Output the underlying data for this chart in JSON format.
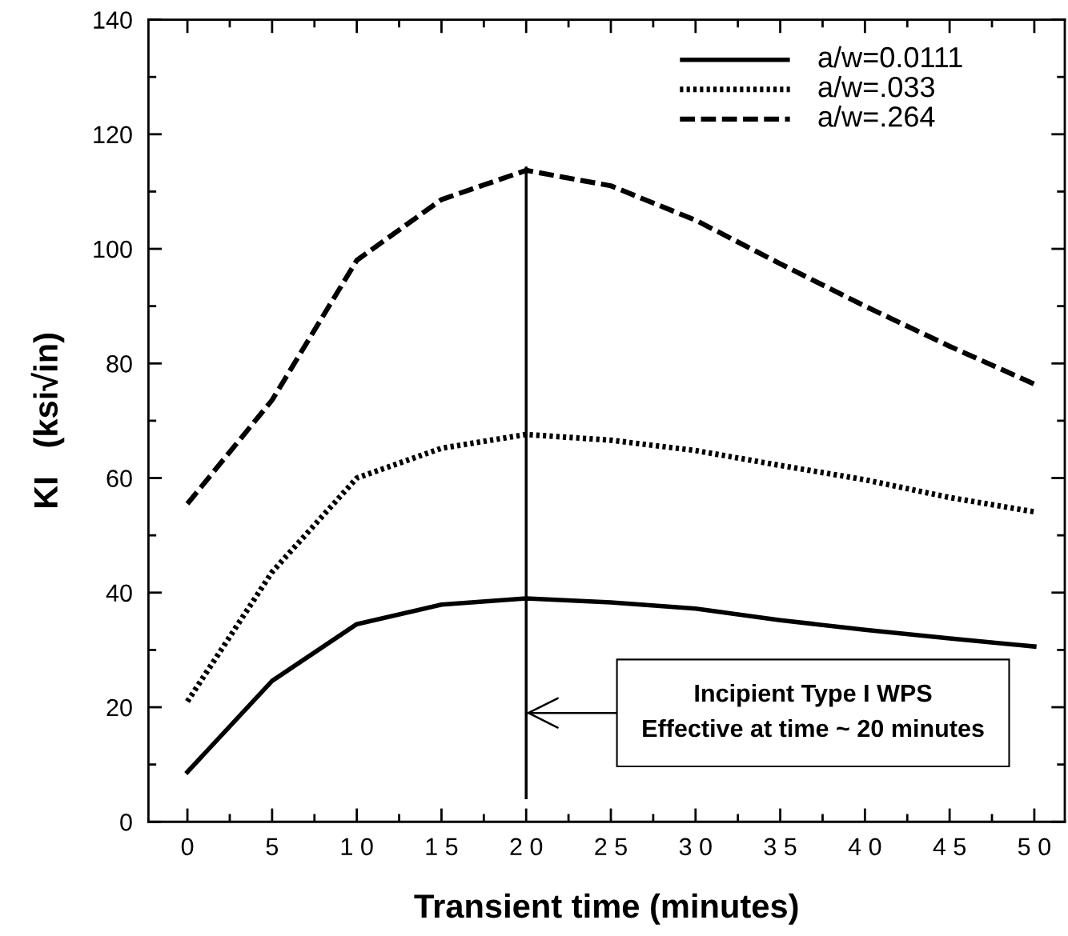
{
  "chart_data": {
    "type": "line",
    "xlabel": "Transient time (minutes)",
    "ylabel": "KI   (ksi√in)",
    "x": [
      0,
      5,
      10,
      15,
      20,
      25,
      30,
      35,
      40,
      45,
      50
    ],
    "series": [
      {
        "name": "a/w=0.0111",
        "color": "#000000",
        "line_style": "solid",
        "values": [
          8.7,
          24.6,
          34.5,
          37.9,
          39.0,
          38.3,
          37.2,
          35.2,
          33.5,
          32.0,
          30.6
        ]
      },
      {
        "name": "a/w=.033",
        "color": "#000000",
        "line_style": "dotted",
        "values": [
          21,
          43.6,
          60,
          65.2,
          67.6,
          66.6,
          64.8,
          62.2,
          59.7,
          56.6,
          54.1
        ]
      },
      {
        "name": "a/w=.264",
        "color": "#000000",
        "line_style": "dashed",
        "values": [
          55.5,
          73.6,
          98,
          108.6,
          113.7,
          111,
          105,
          97.4,
          90,
          83,
          76.4
        ]
      }
    ],
    "xlim": [
      -2.3,
      51.8
    ],
    "ylim": [
      0,
      140
    ],
    "xticks": [
      0,
      5,
      10,
      15,
      20,
      25,
      30,
      35,
      40,
      45,
      50
    ],
    "yticks": [
      0,
      20,
      40,
      60,
      80,
      100,
      120,
      140
    ],
    "ref_lines": [
      {
        "axis": "x",
        "value": 20,
        "color": "#000000",
        "line_style": "solid"
      }
    ],
    "annotations": [
      {
        "text": "Incipient Type I WPS\nEffective at time ~ 20 minutes",
        "x": 20,
        "y": 19
      }
    ],
    "legend": "top right",
    "grid": false,
    "marker": "none"
  }
}
